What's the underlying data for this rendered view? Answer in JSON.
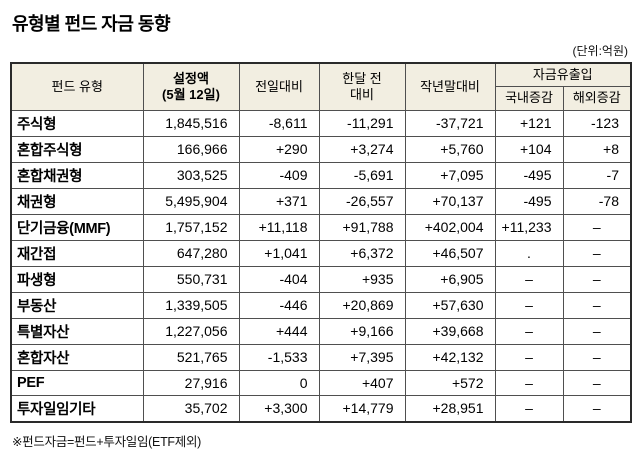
{
  "title": "유형별 펀드 자금 동향",
  "unit_note": "(단위:억원)",
  "footnote": "※펀드자금=펀드+투자일임(ETF제외)",
  "chart_data": {
    "type": "table",
    "title": "유형별 펀드 자금 동향",
    "unit": "억원",
    "header": {
      "fund_type": "펀드 유형",
      "amount_line1": "설정액",
      "amount_line2": "(5월 12일)",
      "vs_prev_day": "전일대비",
      "vs_month_line1": "한달 전",
      "vs_month_line2": "대비",
      "vs_year_end": "작년말대비",
      "flow_group": "자금유출입",
      "flow_domestic": "국내증감",
      "flow_overseas": "해외증감"
    },
    "rows": [
      {
        "type": "주식형",
        "amount": "1,845,516",
        "day": "-8,611",
        "month": "-11,291",
        "year": "-37,721",
        "domestic": "+121",
        "overseas": "-123"
      },
      {
        "type": "혼합주식형",
        "amount": "166,966",
        "day": "+290",
        "month": "+3,274",
        "year": "+5,760",
        "domestic": "+104",
        "overseas": "+8"
      },
      {
        "type": "혼합채권형",
        "amount": "303,525",
        "day": "-409",
        "month": "-5,691",
        "year": "+7,095",
        "domestic": "-495",
        "overseas": "-7"
      },
      {
        "type": "채권형",
        "amount": "5,495,904",
        "day": "+371",
        "month": "-26,557",
        "year": "+70,137",
        "domestic": "-495",
        "overseas": "-78"
      },
      {
        "type": "단기금융(MMF)",
        "amount": "1,757,152",
        "day": "+11,118",
        "month": "+91,788",
        "year": "+402,004",
        "domestic": "+11,233",
        "overseas": "–"
      },
      {
        "type": "재간접",
        "amount": "647,280",
        "day": "+1,041",
        "month": "+6,372",
        "year": "+46,507",
        "domestic": ".",
        "overseas": "–"
      },
      {
        "type": "파생형",
        "amount": "550,731",
        "day": "-404",
        "month": "+935",
        "year": "+6,905",
        "domestic": "–",
        "overseas": "–"
      },
      {
        "type": "부동산",
        "amount": "1,339,505",
        "day": "-446",
        "month": "+20,869",
        "year": "+57,630",
        "domestic": "–",
        "overseas": "–"
      },
      {
        "type": "특별자산",
        "amount": "1,227,056",
        "day": "+444",
        "month": "+9,166",
        "year": "+39,668",
        "domestic": "–",
        "overseas": "–"
      },
      {
        "type": "혼합자산",
        "amount": "521,765",
        "day": "-1,533",
        "month": "+7,395",
        "year": "+42,132",
        "domestic": "–",
        "overseas": "–"
      },
      {
        "type": "PEF",
        "amount": "27,916",
        "day": "0",
        "month": "+407",
        "year": "+572",
        "domestic": "–",
        "overseas": "–"
      },
      {
        "type": "투자일임기타",
        "amount": "35,702",
        "day": "+3,300",
        "month": "+14,779",
        "year": "+28,951",
        "domestic": "–",
        "overseas": "–"
      }
    ]
  }
}
